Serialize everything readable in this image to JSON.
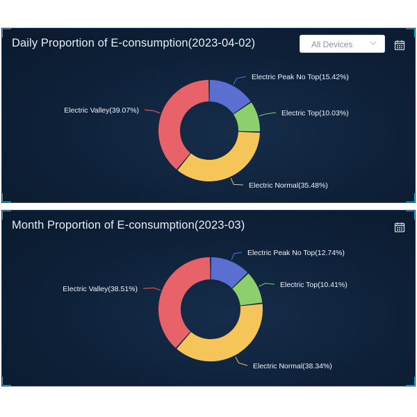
{
  "panels": [
    {
      "title": "Daily Proportion of E-consumption(2023-04-02)",
      "has_device_select": true,
      "device_select": {
        "value": "All Devices"
      },
      "slices": [
        {
          "name": "Electric Peak No Top",
          "percent": 15.42,
          "label": "Electric Peak No Top(15.42%)",
          "color": "#5b6fd0"
        },
        {
          "name": "Electric Top",
          "percent": 10.03,
          "label": "Electric Top(10.03%)",
          "color": "#8ccf6c"
        },
        {
          "name": "Electric Normal",
          "percent": 35.48,
          "label": "Electric Normal(35.48%)",
          "color": "#f6c55a"
        },
        {
          "name": "Electric Valley",
          "percent": 39.07,
          "label": "Electric Valley(39.07%)",
          "color": "#e8626a"
        }
      ]
    },
    {
      "title": "Month Proportion of E-consumption(2023-03)",
      "has_device_select": false,
      "slices": [
        {
          "name": "Electric Peak No Top",
          "percent": 12.74,
          "label": "Electric Peak No Top(12.74%)",
          "color": "#5b6fd0"
        },
        {
          "name": "Electric Top",
          "percent": 10.41,
          "label": "Electric Top(10.41%)",
          "color": "#8ccf6c"
        },
        {
          "name": "Electric Normal",
          "percent": 38.34,
          "label": "Electric Normal(38.34%)",
          "color": "#f6c55a"
        },
        {
          "name": "Electric Valley",
          "percent": 38.51,
          "label": "Electric Valley(38.51%)",
          "color": "#e8626a"
        }
      ]
    }
  ],
  "chart_data": [
    {
      "type": "pie",
      "title": "Daily Proportion of E-consumption(2023-04-02)",
      "categories": [
        "Electric Peak No Top",
        "Electric Top",
        "Electric Normal",
        "Electric Valley"
      ],
      "values": [
        15.42,
        10.03,
        35.48,
        39.07
      ]
    },
    {
      "type": "pie",
      "title": "Month Proportion of E-consumption(2023-03)",
      "categories": [
        "Electric Peak No Top",
        "Electric Top",
        "Electric Normal",
        "Electric Valley"
      ],
      "values": [
        12.74,
        10.41,
        38.34,
        38.51
      ]
    }
  ],
  "icons": {
    "calendar": "calendar-icon",
    "dropdown": "chevron-down-icon"
  }
}
